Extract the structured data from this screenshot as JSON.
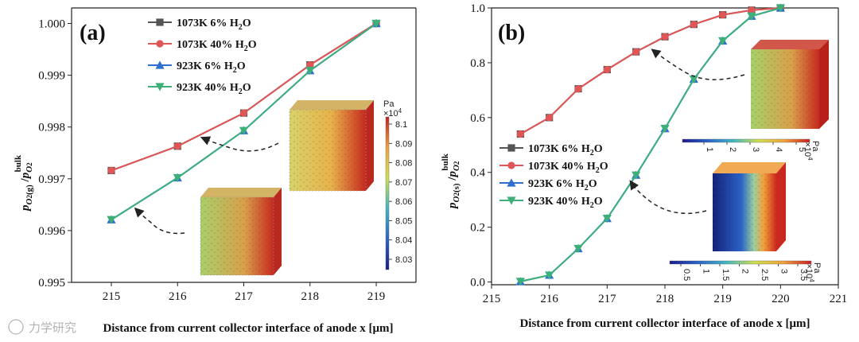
{
  "chart_data": [
    {
      "panel": "(a)",
      "type": "line",
      "xlabel": "Distance from current collector interface of anode x [μm]",
      "ylabel": "p_O2(g) / p_O2^bulk",
      "xlim": [
        214.4,
        219.6
      ],
      "ylim": [
        0.995,
        1.0003
      ],
      "xticks": [
        215,
        216,
        217,
        218,
        219
      ],
      "yticks": [
        0.995,
        0.996,
        0.997,
        0.998,
        0.999,
        1.0
      ],
      "ytick_labels": [
        "0.995",
        "0.996",
        "0.997",
        "0.998",
        "0.999",
        "1.000"
      ],
      "series": [
        {
          "name": "1073K 6% H2O",
          "label": "1073K 6% H",
          "sub": "2",
          "tail": "O",
          "color": "#555555",
          "marker": "square",
          "x": [
            215,
            216,
            217,
            218,
            219
          ],
          "values": [
            0.99716,
            0.99763,
            0.99827,
            0.9992,
            1.0
          ]
        },
        {
          "name": "1073K 40% H2O",
          "label": "1073K 40% H",
          "sub": "2",
          "tail": "O",
          "color": "#e05555",
          "marker": "circle",
          "x": [
            215,
            216,
            217,
            218,
            219
          ],
          "values": [
            0.99716,
            0.99763,
            0.99827,
            0.9992,
            1.0
          ]
        },
        {
          "name": "923K 6% H2O",
          "label": "923K  6% H",
          "sub": "2",
          "tail": "O",
          "color": "#2f6fd0",
          "marker": "triangle-up",
          "x": [
            215,
            216,
            217,
            218,
            219
          ],
          "values": [
            0.99621,
            0.99702,
            0.99793,
            0.99909,
            1.0
          ]
        },
        {
          "name": "923K 40% H2O",
          "label": "923K 40% H",
          "sub": "2",
          "tail": "O",
          "color": "#3db07a",
          "marker": "triangle-down",
          "x": [
            215,
            216,
            217,
            218,
            219
          ],
          "values": [
            0.99621,
            0.99702,
            0.99793,
            0.99909,
            1.0
          ]
        }
      ],
      "colorbar": {
        "title": "Pa",
        "exponent": "×10",
        "exp_power": "4",
        "ticks": [
          "8.1",
          "8.09",
          "8.08",
          "8.07",
          "8.06",
          "8.05",
          "8.04",
          "8.03"
        ]
      }
    },
    {
      "panel": "(b)",
      "type": "line",
      "xlabel": "Distance from current collector interface of anode x [μm]",
      "ylabel": "p_O2(s) / p_O2^bulk",
      "xlim": [
        215,
        221
      ],
      "ylim": [
        -0.01,
        1.0
      ],
      "xticks": [
        215,
        216,
        217,
        218,
        219,
        220,
        221
      ],
      "yticks": [
        0.0,
        0.2,
        0.4,
        0.6,
        0.8,
        1.0
      ],
      "ytick_labels": [
        "0.0",
        "0.2",
        "0.4",
        "0.6",
        "0.8",
        "1.0"
      ],
      "series": [
        {
          "name": "1073K 6% H2O",
          "label": "1073K 6% H",
          "sub": "2",
          "tail": "O",
          "color": "#555555",
          "marker": "square",
          "x": [
            215.5,
            216,
            216.5,
            217,
            217.5,
            218,
            218.5,
            219,
            219.5,
            220
          ],
          "values": [
            0.54,
            0.6,
            0.705,
            0.775,
            0.84,
            0.895,
            0.94,
            0.975,
            0.992,
            1.0
          ]
        },
        {
          "name": "1073K 40% H2O",
          "label": "1073K 40% H",
          "sub": "2",
          "tail": "O",
          "color": "#e05555",
          "marker": "circle",
          "x": [
            215.5,
            216,
            216.5,
            217,
            217.5,
            218,
            218.5,
            219,
            219.5,
            220
          ],
          "values": [
            0.54,
            0.6,
            0.705,
            0.775,
            0.84,
            0.895,
            0.94,
            0.975,
            0.992,
            1.0
          ]
        },
        {
          "name": "923K 6% H2O",
          "label": "923K  6% H",
          "sub": "2",
          "tail": "O",
          "color": "#2f6fd0",
          "marker": "triangle-up",
          "x": [
            215.5,
            216,
            216.5,
            217,
            217.5,
            218,
            218.5,
            219,
            219.5,
            220
          ],
          "values": [
            0.002,
            0.025,
            0.122,
            0.232,
            0.39,
            0.56,
            0.74,
            0.88,
            0.97,
            1.0
          ]
        },
        {
          "name": "923K 40% H2O",
          "label": "923K 40% H",
          "sub": "2",
          "tail": "O",
          "color": "#3db07a",
          "marker": "triangle-down",
          "x": [
            215.5,
            216,
            216.5,
            217,
            217.5,
            218,
            218.5,
            219,
            219.5,
            220
          ],
          "values": [
            0.002,
            0.025,
            0.122,
            0.232,
            0.39,
            0.56,
            0.74,
            0.88,
            0.97,
            1.0
          ]
        }
      ],
      "colorbar_top": {
        "title": "Pa",
        "exponent": "×10",
        "exp_power": "4",
        "ticks": [
          "1",
          "2",
          "3",
          "4",
          "5"
        ]
      },
      "colorbar_bottom": {
        "title": "Pa",
        "exponent": "×10",
        "exp_power": "4",
        "ticks": [
          "0.5",
          "1",
          "1.5",
          "2",
          "2.5",
          "3",
          "3.5"
        ]
      }
    }
  ],
  "watermark": "力学研究",
  "colors": {
    "axis": "#222222",
    "background": "#ffffff"
  }
}
